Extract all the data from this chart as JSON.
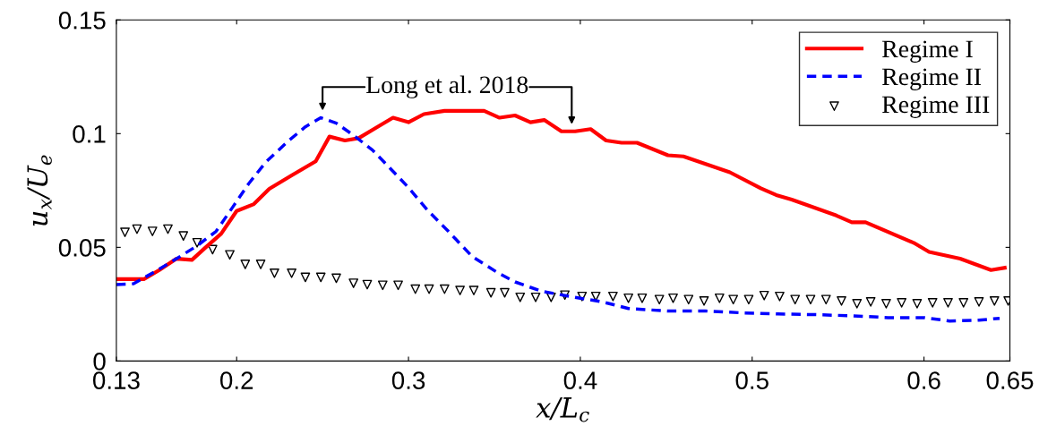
{
  "chart_data": {
    "type": "line",
    "xlabel": "x/L$_{c}$",
    "ylabel": "u$_{x}$/U$_{e}$",
    "xlim": [
      0.13,
      0.65
    ],
    "ylim": [
      0,
      0.15
    ],
    "xticks": [
      0.13,
      0.2,
      0.3,
      0.4,
      0.5,
      0.6,
      0.65
    ],
    "yticks": [
      0,
      0.05,
      0.1,
      0.15
    ],
    "grid": false,
    "legend": "top right",
    "series": [
      {
        "name": "Regime I",
        "color": "#ff0000",
        "line_style": "solid",
        "marker": "none",
        "x": [
          0.13,
          0.146,
          0.155,
          0.165,
          0.174,
          0.182,
          0.191,
          0.2,
          0.21,
          0.219,
          0.232,
          0.246,
          0.254,
          0.263,
          0.271,
          0.282,
          0.291,
          0.3,
          0.309,
          0.321,
          0.344,
          0.353,
          0.362,
          0.371,
          0.379,
          0.389,
          0.397,
          0.406,
          0.415,
          0.424,
          0.433,
          0.451,
          0.46,
          0.487,
          0.505,
          0.514,
          0.523,
          0.549,
          0.558,
          0.566,
          0.594,
          0.603,
          0.621,
          0.639,
          0.647
        ],
        "values": [
          0.036,
          0.036,
          0.04,
          0.045,
          0.0445,
          0.05,
          0.056,
          0.066,
          0.069,
          0.0757,
          0.0816,
          0.0878,
          0.0987,
          0.097,
          0.098,
          0.103,
          0.107,
          0.105,
          0.1086,
          0.11,
          0.11,
          0.107,
          0.108,
          0.105,
          0.106,
          0.101,
          0.101,
          0.102,
          0.097,
          0.096,
          0.096,
          0.0905,
          0.09,
          0.083,
          0.076,
          0.073,
          0.071,
          0.064,
          0.061,
          0.061,
          0.052,
          0.048,
          0.045,
          0.04,
          0.041
        ]
      },
      {
        "name": "Regime II",
        "color": "#0000ff",
        "line_style": "dashed",
        "marker": "none",
        "x": [
          0.13,
          0.14,
          0.154,
          0.165,
          0.177,
          0.188,
          0.198,
          0.207,
          0.217,
          0.23,
          0.24,
          0.249,
          0.258,
          0.268,
          0.279,
          0.289,
          0.3,
          0.311,
          0.323,
          0.337,
          0.352,
          0.362,
          0.377,
          0.394,
          0.413,
          0.428,
          0.451,
          0.473,
          0.494,
          0.515,
          0.537,
          0.558,
          0.579,
          0.6,
          0.615,
          0.632,
          0.644
        ],
        "values": [
          0.0336,
          0.034,
          0.04,
          0.045,
          0.0507,
          0.057,
          0.068,
          0.078,
          0.0875,
          0.0967,
          0.103,
          0.107,
          0.1046,
          0.0993,
          0.0928,
          0.085,
          0.0763,
          0.0664,
          0.0572,
          0.046,
          0.0388,
          0.0348,
          0.0308,
          0.0284,
          0.026,
          0.0231,
          0.022,
          0.022,
          0.0212,
          0.0207,
          0.0204,
          0.0199,
          0.0191,
          0.0191,
          0.0176,
          0.018,
          0.0188
        ]
      },
      {
        "name": "Regime III",
        "type": "scatter",
        "color": "#000000",
        "marker": "triangle",
        "x": [
          0.135,
          0.142,
          0.151,
          0.16,
          0.169,
          0.177,
          0.186,
          0.196,
          0.205,
          0.214,
          0.222,
          0.232,
          0.24,
          0.249,
          0.258,
          0.268,
          0.276,
          0.285,
          0.294,
          0.304,
          0.312,
          0.321,
          0.33,
          0.338,
          0.348,
          0.356,
          0.365,
          0.374,
          0.383,
          0.391,
          0.401,
          0.409,
          0.419,
          0.428,
          0.436,
          0.446,
          0.454,
          0.463,
          0.472,
          0.481,
          0.489,
          0.498,
          0.507,
          0.516,
          0.525,
          0.534,
          0.543,
          0.552,
          0.561,
          0.569,
          0.578,
          0.587,
          0.596,
          0.605,
          0.614,
          0.623,
          0.632,
          0.641,
          0.649
        ],
        "values": [
          0.0566,
          0.058,
          0.057,
          0.058,
          0.055,
          0.052,
          0.049,
          0.0467,
          0.0425,
          0.0425,
          0.0386,
          0.0386,
          0.0368,
          0.0368,
          0.0364,
          0.0342,
          0.0336,
          0.0333,
          0.0333,
          0.0316,
          0.0316,
          0.0316,
          0.031,
          0.031,
          0.03,
          0.03,
          0.028,
          0.028,
          0.028,
          0.029,
          0.0284,
          0.0284,
          0.0284,
          0.0276,
          0.0276,
          0.027,
          0.0276,
          0.027,
          0.0264,
          0.0276,
          0.027,
          0.027,
          0.0288,
          0.0284,
          0.027,
          0.027,
          0.027,
          0.0264,
          0.0252,
          0.026,
          0.0252,
          0.0256,
          0.0252,
          0.0256,
          0.0256,
          0.0256,
          0.026,
          0.0264,
          0.0264
        ]
      }
    ],
    "annotations": [
      {
        "text": "Long et al. 2018",
        "x": 0.25,
        "y": 0.107
      }
    ]
  }
}
